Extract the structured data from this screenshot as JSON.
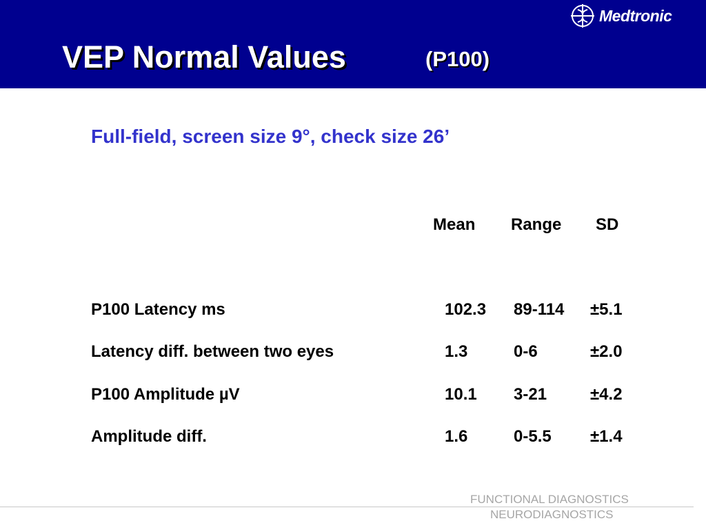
{
  "header": {
    "title": "VEP Normal Values",
    "title_sub": "(P100)",
    "brand": "Medtronic"
  },
  "subtitle": "Full-field, screen size 9°, check size 26’",
  "table": {
    "columns": [
      "Mean",
      "Range",
      "SD"
    ],
    "rows": [
      {
        "label": "P100  Latency ms",
        "mean": "102.3",
        "range": "89-114",
        "sd": "±5.1"
      },
      {
        "label": "Latency diff. between two eyes",
        "mean": "1.3",
        "range": "0-6",
        "sd": "±2.0"
      },
      {
        "label": "P100  Amplitude µV",
        "mean": "10.1",
        "range": "3-21",
        "sd": "±4.2"
      },
      {
        "label": "Amplitude diff.",
        "mean": "1.6",
        "range": "0-5.5",
        "sd": "±1.4"
      }
    ]
  },
  "footer": {
    "line1": "FUNCTIONAL DIAGNOSTICS",
    "line2": "NEURODIAGNOSTICS"
  },
  "colors": {
    "header_bg": "#00008f",
    "subtitle": "#3333cc",
    "footer_text": "#a6a6a6"
  },
  "icons": {
    "logo": "medtronic-logo-icon"
  }
}
